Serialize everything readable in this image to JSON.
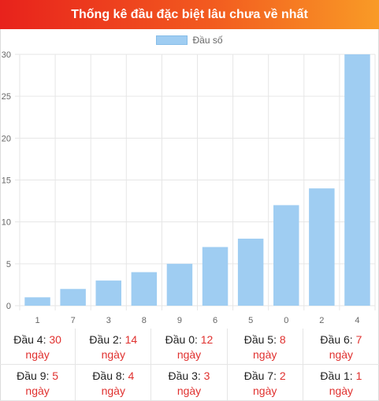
{
  "header": {
    "title": "Thống kê đầu đặc biệt lâu chưa về nhất"
  },
  "colors": {
    "bar": "#9fcdf2",
    "highlight_text": "#e0312f",
    "title_gradient_start": "#e8221c",
    "title_gradient_end": "#f99b26"
  },
  "chart_data": {
    "type": "bar",
    "title": "",
    "xlabel": "",
    "ylabel": "",
    "categories": [
      "1",
      "7",
      "3",
      "8",
      "9",
      "6",
      "5",
      "0",
      "2",
      "4"
    ],
    "series": [
      {
        "name": "Đầu số",
        "values": [
          1,
          2,
          3,
          4,
          5,
          7,
          8,
          12,
          14,
          30
        ]
      }
    ],
    "ylim": [
      0,
      30
    ],
    "yticks": [
      0,
      5,
      10,
      15,
      20,
      25,
      30
    ],
    "grid": true,
    "legend": "top-center"
  },
  "stats": [
    {
      "label": "Đầu 4:",
      "value": "30",
      "unit": "ngày"
    },
    {
      "label": "Đầu 2:",
      "value": "14",
      "unit": "ngày"
    },
    {
      "label": "Đầu 0:",
      "value": "12",
      "unit": "ngày"
    },
    {
      "label": "Đầu 5:",
      "value": "8",
      "unit": "ngày"
    },
    {
      "label": "Đầu 6:",
      "value": "7",
      "unit": "ngày"
    },
    {
      "label": "Đầu 9:",
      "value": "5",
      "unit": "ngày"
    },
    {
      "label": "Đầu 8:",
      "value": "4",
      "unit": "ngày"
    },
    {
      "label": "Đầu 3:",
      "value": "3",
      "unit": "ngày"
    },
    {
      "label": "Đầu 7:",
      "value": "2",
      "unit": "ngày"
    },
    {
      "label": "Đầu 1:",
      "value": "1",
      "unit": "ngày"
    }
  ]
}
